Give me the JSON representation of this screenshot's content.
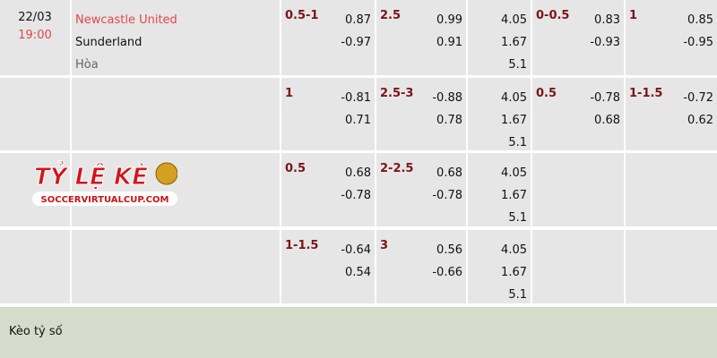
{
  "match": {
    "date": "22/03",
    "time": "19:00",
    "home": "Newcastle United",
    "away": "Sunderland",
    "draw": "Hòa"
  },
  "rows": [
    {
      "hdp": {
        "line": "0.5-1",
        "v": [
          "0.87",
          "-0.97"
        ]
      },
      "ou": {
        "line": "2.5",
        "v": [
          "0.99",
          "0.91"
        ]
      },
      "x12": [
        "4.05",
        "1.67",
        "5.1"
      ],
      "hdp1": {
        "line": "0-0.5",
        "v": [
          "0.83",
          "-0.93"
        ]
      },
      "ou1": {
        "line": "1",
        "v": [
          "0.85",
          "-0.95"
        ]
      }
    },
    {
      "hdp": {
        "line": "1",
        "v": [
          "-0.81",
          "0.71"
        ]
      },
      "ou": {
        "line": "2.5-3",
        "v": [
          "-0.88",
          "0.78"
        ]
      },
      "x12": [
        "4.05",
        "1.67",
        "5.1"
      ],
      "hdp1": {
        "line": "0.5",
        "v": [
          "-0.78",
          "0.68"
        ]
      },
      "ou1": {
        "line": "1-1.5",
        "v": [
          "-0.72",
          "0.62"
        ]
      }
    },
    {
      "hdp": {
        "line": "0.5",
        "v": [
          "0.68",
          "-0.78"
        ]
      },
      "ou": {
        "line": "2-2.5",
        "v": [
          "0.68",
          "-0.78"
        ]
      },
      "x12": [
        "4.05",
        "1.67",
        "5.1"
      ],
      "hdp1": {
        "line": "",
        "v": [
          "",
          ""
        ]
      },
      "ou1": {
        "line": "",
        "v": [
          "",
          ""
        ]
      }
    },
    {
      "hdp": {
        "line": "1-1.5",
        "v": [
          "-0.64",
          "0.54"
        ]
      },
      "ou": {
        "line": "3",
        "v": [
          "0.56",
          "-0.66"
        ]
      },
      "x12": [
        "4.05",
        "1.67",
        "5.1"
      ],
      "hdp1": {
        "line": "",
        "v": [
          "",
          ""
        ]
      },
      "ou1": {
        "line": "",
        "v": [
          "",
          ""
        ]
      }
    }
  ],
  "footer": {
    "label": "Kèo tỷ số"
  },
  "watermark": {
    "text": "TỶ LỆ KÈO",
    "site": "SOCCERVIRTUALCUP.COM"
  },
  "colors": {
    "team_home": "#e0474c",
    "line": "#7a1418",
    "cell_bg": "#e6e6e6",
    "footer_bg": "#d5dccb"
  }
}
